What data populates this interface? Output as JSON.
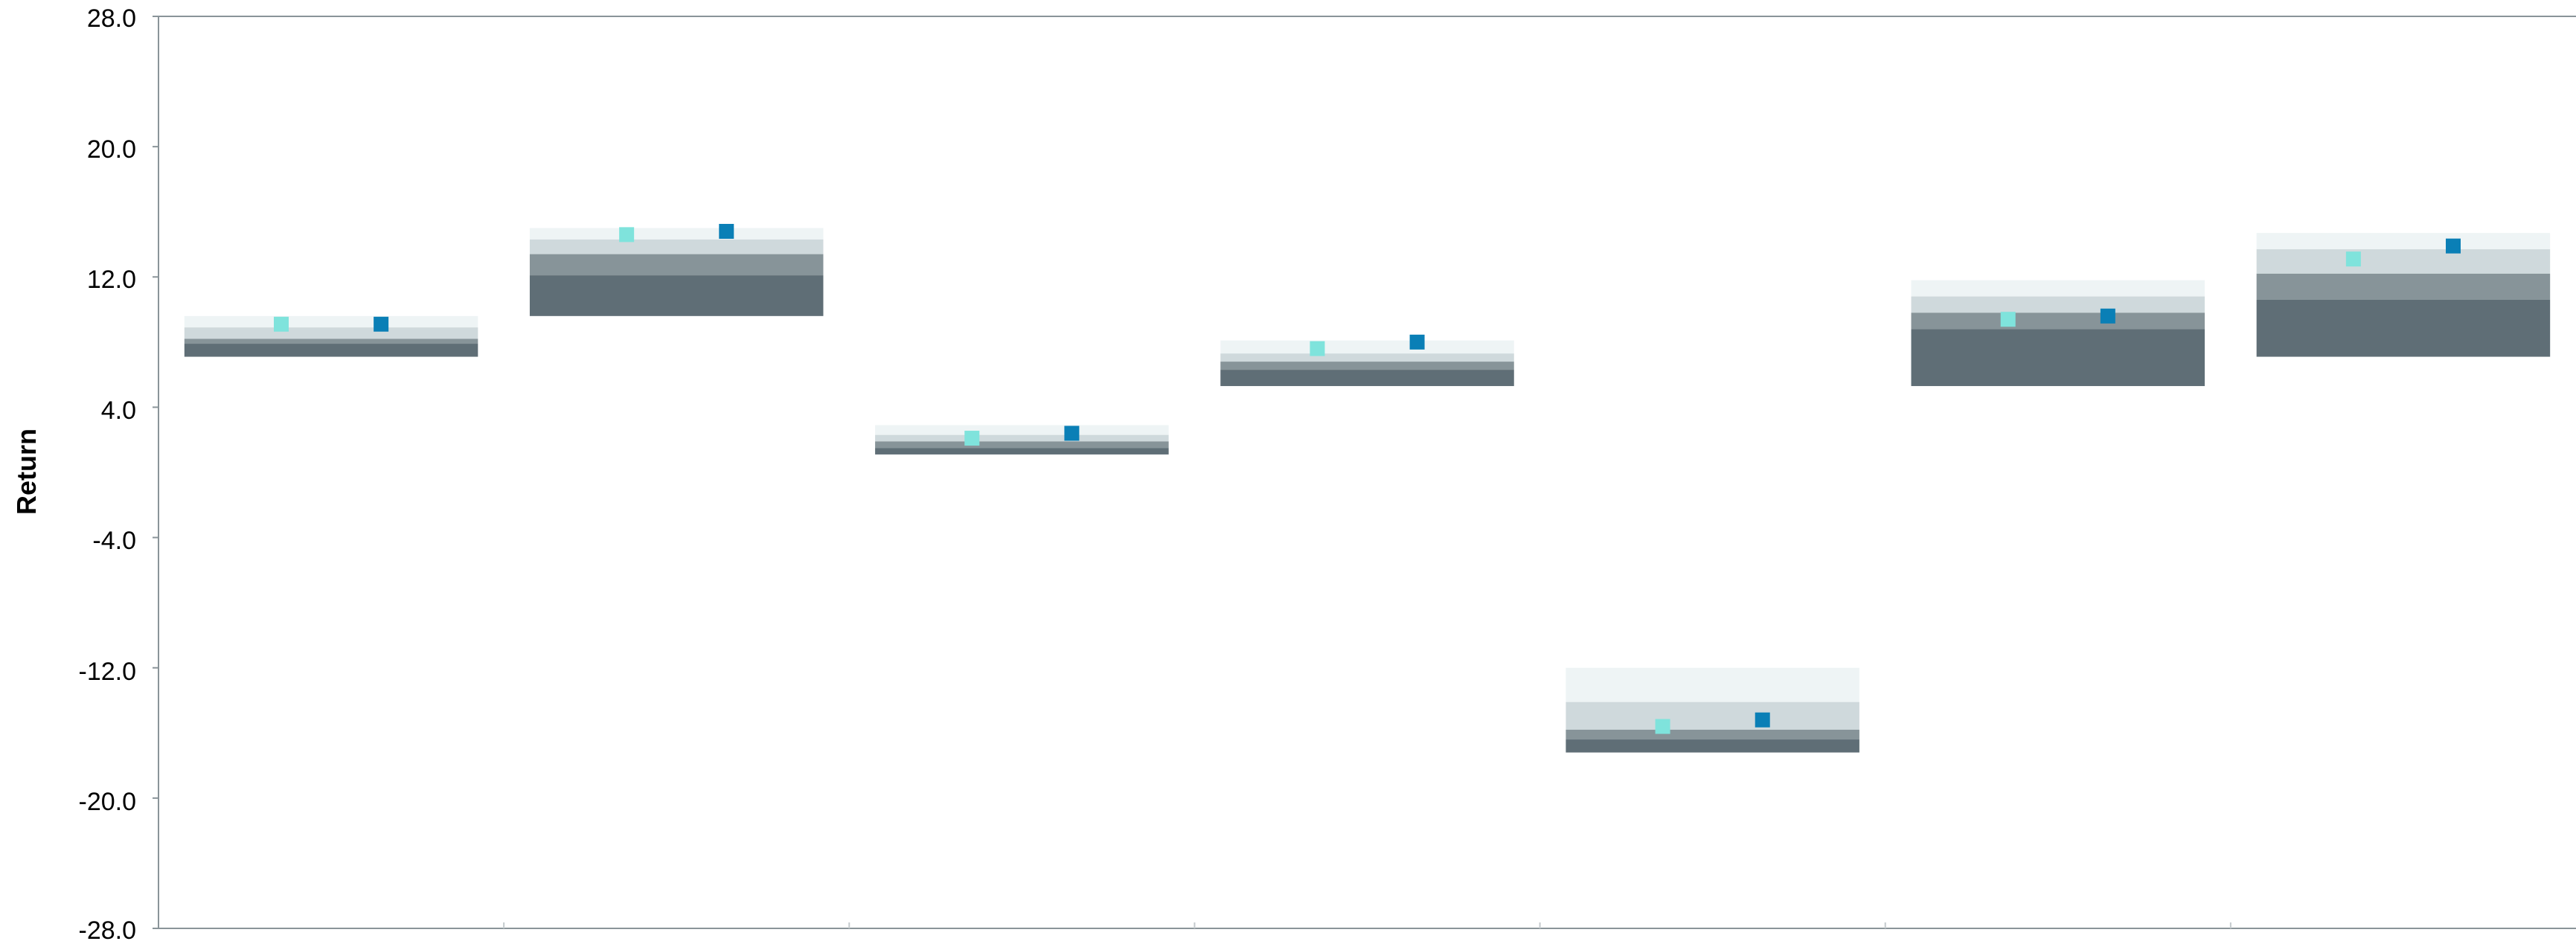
{
  "chart_data": {
    "type": "floating-bar-percentile",
    "title": "",
    "xlabel": "",
    "ylabel": "Return",
    "ylim": [
      -28.0,
      28.0
    ],
    "yticks": [
      "28.0",
      "20.0",
      "12.0",
      "4.0",
      "-4.0",
      "-12.0",
      "-20.0",
      "-28.0"
    ],
    "ytick_values": [
      28,
      20,
      12,
      4,
      -4,
      -12,
      -20,
      -28
    ],
    "grid": false,
    "legend": "none",
    "band_colors": [
      "#eef4f5",
      "#cfd9dc",
      "#879499",
      "#5f6e76"
    ],
    "marker_colors": [
      "#7fe3dc",
      "#0a7fb6"
    ],
    "groups": [
      {
        "bands": [
          7.1,
          7.9,
          8.2,
          8.9,
          9.6
        ],
        "markers": [
          9.1,
          9.1
        ]
      },
      {
        "bands": [
          9.6,
          12.1,
          13.4,
          14.3,
          15.0
        ],
        "markers": [
          14.6,
          14.8
        ]
      },
      {
        "bands": [
          1.1,
          1.5,
          1.9,
          2.3,
          2.9
        ],
        "markers": [
          2.1,
          2.4
        ]
      },
      {
        "bands": [
          5.3,
          6.3,
          6.8,
          7.3,
          8.1
        ],
        "markers": [
          7.6,
          8.0
        ]
      },
      {
        "bands": [
          -17.2,
          -16.4,
          -15.8,
          -14.1,
          -12.0
        ],
        "markers": [
          -15.6,
          -15.2
        ]
      },
      {
        "bands": [
          5.3,
          8.8,
          9.8,
          10.8,
          11.8
        ],
        "markers": [
          9.4,
          9.6
        ]
      },
      {
        "bands": [
          7.1,
          10.6,
          12.2,
          13.7,
          14.7
        ],
        "markers": [
          13.1,
          13.9
        ]
      }
    ]
  }
}
